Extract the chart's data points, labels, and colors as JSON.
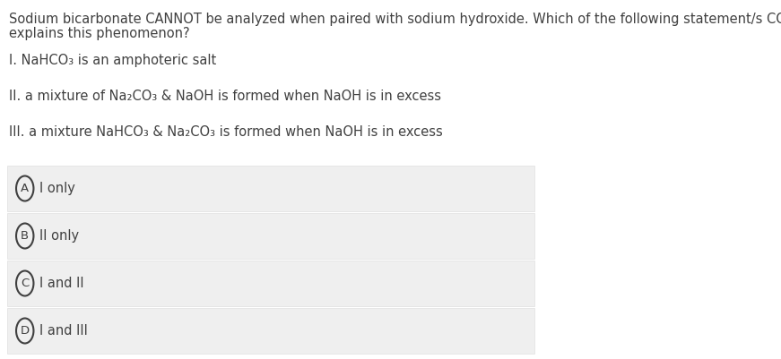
{
  "bg_color": "#ffffff",
  "question_line1": "Sodium bicarbonate CANNOT be analyzed when paired with sodium hydroxide. Which of the following statement/s CORRECTLY",
  "question_line2": "explains this phenomenon?",
  "options": [
    {
      "label": "A",
      "text": "I only"
    },
    {
      "label": "B",
      "text": "II only"
    },
    {
      "label": "C",
      "text": "I and II"
    },
    {
      "label": "D",
      "text": "I and III"
    }
  ],
  "option_bg": "#efefef",
  "option_border": "#e0e0e0",
  "text_color": "#404040",
  "circle_edge_color": "#404040",
  "font_size_question": 10.5,
  "font_size_statement": 10.5,
  "font_size_option": 10.5,
  "font_size_sub": 7.5
}
